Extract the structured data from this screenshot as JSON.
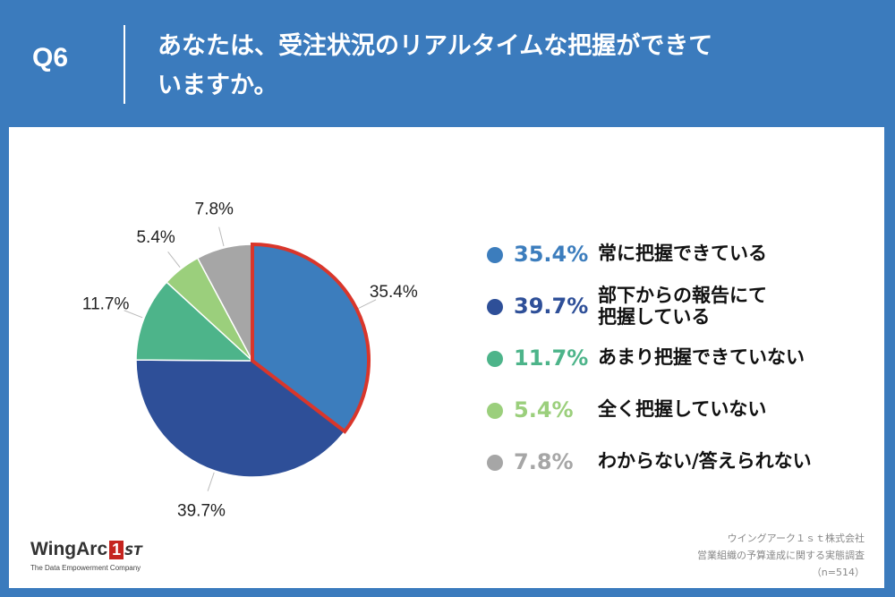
{
  "header": {
    "qnum": "Q6",
    "question": "あなたは、受注状況のリアルタイムな把握ができていますか。"
  },
  "chart_data": {
    "type": "pie",
    "slices": [
      {
        "label": "常に把握できている",
        "value": 35.4,
        "pct_text": "35.4%",
        "color": "#3c7dbd",
        "highlight": true
      },
      {
        "label": "部下からの報告にて把握している",
        "value": 39.7,
        "pct_text": "39.7%",
        "color": "#2e4f98"
      },
      {
        "label": "あまり把握できていない",
        "value": 11.7,
        "pct_text": "11.7%",
        "color": "#4db48a"
      },
      {
        "label": "全く把握していない",
        "value": 5.4,
        "pct_text": "5.4%",
        "color": "#9bcf7c"
      },
      {
        "label": "わからない/答えられない",
        "value": 7.8,
        "pct_text": "7.8%",
        "color": "#a6a6a6"
      }
    ],
    "highlight_color": "#d9362b",
    "legend_position": "right"
  },
  "legend": [
    {
      "pct": "35.4%",
      "label": "常に把握できている",
      "color": "#3c7dbd"
    },
    {
      "pct": "39.7%",
      "label1": "部下からの報告にて",
      "label2": "把握している",
      "color": "#2e4f98"
    },
    {
      "pct": "11.7%",
      "label": "あまり把握できていない",
      "color": "#4db48a"
    },
    {
      "pct": "5.4%",
      "label": "全く把握していない",
      "color": "#9bcf7c"
    },
    {
      "pct": "7.8%",
      "label": "わからない/答えられない",
      "color": "#a6a6a6"
    }
  ],
  "logo": {
    "word": "WingArc",
    "mark": "1",
    "suffix": "ST",
    "tagline": "The Data Empowerment Company"
  },
  "source": {
    "line1": "ウイングアーク１ｓｔ株式会社",
    "line2": "営業組織の予算達成に関する実態調査",
    "line3": "（n=514）"
  }
}
